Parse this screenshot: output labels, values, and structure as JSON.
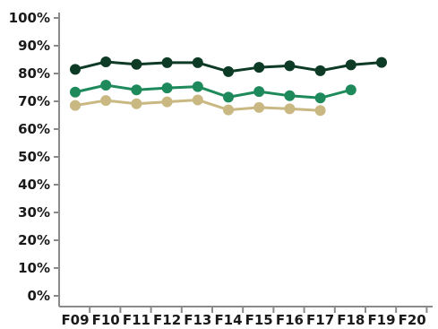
{
  "chart_data": {
    "type": "line",
    "categories": [
      "F09",
      "F10",
      "F11",
      "F12",
      "F13",
      "F14",
      "F15",
      "F16",
      "F17",
      "F18",
      "F19",
      "F20"
    ],
    "y_ticks": [
      "0%",
      "10%",
      "20%",
      "30%",
      "40%",
      "50%",
      "60%",
      "70%",
      "80%",
      "90%",
      "100%"
    ],
    "ylim": [
      0,
      100
    ],
    "grid": false,
    "series": [
      {
        "color": "#0d3b26",
        "values": [
          81.5,
          84.2,
          83.3,
          83.9,
          83.9,
          80.7,
          82.2,
          82.8,
          81.0,
          83.1,
          84.0,
          null
        ]
      },
      {
        "color": "#1e8a5c",
        "values": [
          73.3,
          75.8,
          74.1,
          74.8,
          75.3,
          71.5,
          73.5,
          72.0,
          71.2,
          74.1,
          null,
          null
        ]
      },
      {
        "color": "#c9b882",
        "values": [
          68.5,
          70.3,
          69.1,
          69.8,
          70.5,
          66.9,
          67.8,
          67.3,
          66.7,
          null,
          null,
          null
        ]
      }
    ]
  }
}
